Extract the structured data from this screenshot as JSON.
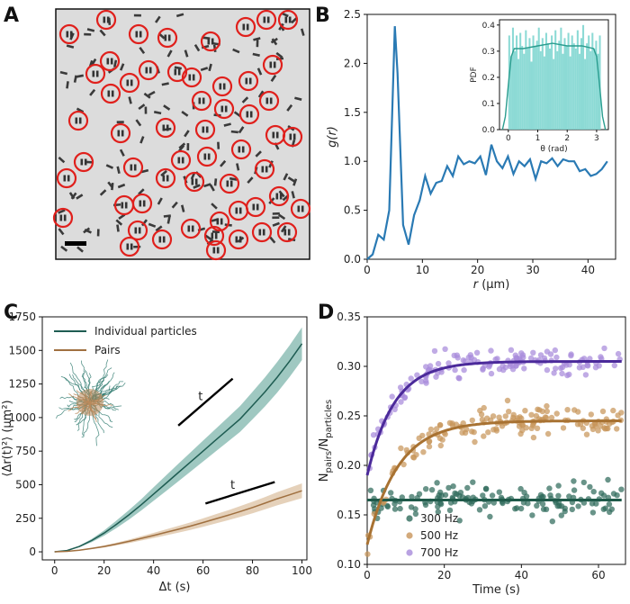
{
  "figure_labels": {
    "a": "A",
    "b": "B",
    "c": "C",
    "d": "D"
  },
  "panel_a": {
    "description_name": "micrograph-with-circled-pairs"
  },
  "chart_data": [
    {
      "panel": "B",
      "type": "line",
      "xlabel_var": "r",
      "xlabel_unit": "(µm)",
      "ylabel_var": "g(r)",
      "xlim": [
        0,
        45
      ],
      "ylim": [
        0,
        2.5
      ],
      "xticks": [
        "0",
        "10",
        "20",
        "30",
        "40"
      ],
      "yticks": [
        "0.0",
        "0.5",
        "1.0",
        "1.5",
        "2.0",
        "2.5"
      ],
      "color": "#2a7ab4",
      "x": [
        0,
        1,
        2,
        3,
        4,
        5,
        5.5,
        6.5,
        7.5,
        8.5,
        9.5,
        10.5,
        11.5,
        12.5,
        13.5,
        14.5,
        15.5,
        16.5,
        17.5,
        18.5,
        19.5,
        20.5,
        21.5,
        22.5,
        23.5,
        24.5,
        25.5,
        26.5,
        27.5,
        28.5,
        29.5,
        30.5,
        31.5,
        32.5,
        33.5,
        34.5,
        35.5,
        36.5,
        37.5,
        38.5,
        39.5,
        40.5,
        41.5,
        42.5,
        43.5
      ],
      "y": [
        0,
        0.05,
        0.25,
        0.2,
        0.5,
        2.38,
        1.9,
        0.35,
        0.15,
        0.45,
        0.6,
        0.85,
        0.67,
        0.78,
        0.8,
        0.95,
        0.85,
        1.05,
        0.97,
        1.0,
        0.98,
        1.05,
        0.86,
        1.17,
        1.0,
        0.93,
        1.05,
        0.87,
        1.0,
        0.95,
        1.02,
        0.82,
        1.0,
        0.98,
        1.03,
        0.95,
        1.02,
        1.0,
        1.0,
        0.9,
        0.92,
        0.85,
        0.87,
        0.92,
        1.0
      ],
      "inset": {
        "type": "histogram+line",
        "xlabel": "θ (rad)",
        "ylabel": "PDF",
        "xlim": [
          -0.3,
          3.4
        ],
        "ylim": [
          0,
          0.42
        ],
        "xticks": [
          "0",
          "1",
          "2",
          "3"
        ],
        "yticks": [
          "0.0",
          "0.1",
          "0.2",
          "0.3",
          "0.4"
        ],
        "bar_color": "#7fd6d0",
        "line_color": "#2a9d8f",
        "hist_values": [
          0.36,
          0.28,
          0.39,
          0.3,
          0.36,
          0.27,
          0.37,
          0.32,
          0.29,
          0.38,
          0.31,
          0.35,
          0.26,
          0.36,
          0.32,
          0.34,
          0.39,
          0.3,
          0.35,
          0.28,
          0.37,
          0.33,
          0.31,
          0.36,
          0.27,
          0.38,
          0.3,
          0.34,
          0.39,
          0.29,
          0.35,
          0.32,
          0.37,
          0.28,
          0.36,
          0.33,
          0.31,
          0.38,
          0.29,
          0.35,
          0.4,
          0.27,
          0.33,
          0.36,
          0.3,
          0.37,
          0.31,
          0.34,
          0.29,
          0.36
        ],
        "kde_x": [
          -0.2,
          -0.1,
          0.0,
          0.1,
          0.2,
          0.5,
          1.0,
          1.5,
          2.0,
          2.5,
          2.9,
          3.0,
          3.1,
          3.2,
          3.3
        ],
        "kde_y": [
          0.0,
          0.05,
          0.17,
          0.28,
          0.31,
          0.31,
          0.32,
          0.33,
          0.32,
          0.32,
          0.31,
          0.28,
          0.17,
          0.05,
          0.0
        ]
      }
    },
    {
      "panel": "C",
      "type": "line",
      "xlabel": "Δt (s)",
      "ylabel": "⟨Δr(t)²⟩ (µm²)",
      "xlim": [
        -5,
        102
      ],
      "ylim": [
        -60,
        1750
      ],
      "xticks": [
        "0",
        "20",
        "40",
        "60",
        "80",
        "100"
      ],
      "yticks": [
        "0",
        "250",
        "500",
        "750",
        "1000",
        "1250",
        "1500",
        "1750"
      ],
      "series": [
        {
          "name": "Individual particles",
          "color": "#1e5c52",
          "band_color": "#7fb5ac",
          "x": [
            0,
            5,
            10,
            15,
            20,
            25,
            30,
            35,
            40,
            45,
            50,
            55,
            60,
            65,
            70,
            75,
            80,
            85,
            90,
            95,
            100
          ],
          "y": [
            0,
            10,
            40,
            85,
            140,
            205,
            275,
            350,
            430,
            510,
            590,
            670,
            750,
            830,
            910,
            990,
            1090,
            1190,
            1300,
            1420,
            1550
          ],
          "band": [
            0,
            2,
            6,
            12,
            20,
            28,
            35,
            42,
            50,
            58,
            65,
            72,
            78,
            84,
            90,
            96,
            102,
            108,
            114,
            118,
            122
          ]
        },
        {
          "name": "Pairs",
          "color": "#a07040",
          "band_color": "#dcc1a3",
          "x": [
            0,
            5,
            10,
            15,
            20,
            25,
            30,
            35,
            40,
            45,
            50,
            55,
            60,
            65,
            70,
            75,
            80,
            85,
            90,
            95,
            100
          ],
          "y": [
            0,
            4,
            12,
            25,
            40,
            58,
            78,
            100,
            122,
            145,
            168,
            192,
            218,
            245,
            272,
            300,
            330,
            362,
            395,
            425,
            455
          ],
          "band": [
            0,
            1,
            3,
            5,
            8,
            10,
            13,
            16,
            19,
            22,
            25,
            28,
            31,
            34,
            37,
            40,
            43,
            46,
            49,
            52,
            55
          ]
        }
      ],
      "annotations": [
        {
          "text": "t",
          "slope_from": [
            50,
            940
          ],
          "slope_to": [
            72,
            1290
          ],
          "label_at": [
            59,
            1130
          ]
        },
        {
          "text": "t",
          "slope_from": [
            61,
            360
          ],
          "slope_to": [
            89,
            520
          ],
          "label_at": [
            72,
            470
          ]
        }
      ]
    },
    {
      "panel": "D",
      "type": "scatter",
      "xlabel": "Time (s)",
      "ylabel_main": "N",
      "ylabel_sub1": "pairs",
      "ylabel_mid": "/N",
      "ylabel_sub2": "particles",
      "xlim": [
        0,
        67
      ],
      "ylim": [
        0.1,
        0.35
      ],
      "xticks": [
        "0",
        "20",
        "40",
        "60"
      ],
      "yticks": [
        "0.10",
        "0.15",
        "0.20",
        "0.25",
        "0.30",
        "0.35"
      ],
      "series": [
        {
          "name": "300 Hz",
          "color": "#2f6b5b",
          "fit_color": "#1f5a4a",
          "fit": {
            "kind": "constant",
            "value": 0.165
          },
          "noise": 0.015
        },
        {
          "name": "500 Hz",
          "color": "#c8955a",
          "fit_color": "#a87232",
          "fit": {
            "kind": "exp",
            "y0": 0.12,
            "yinf": 0.245,
            "tau": 8
          },
          "noise": 0.015
        },
        {
          "name": "700 Hz",
          "color": "#a78bdb",
          "fit_color": "#4b2a9a",
          "fit": {
            "kind": "exp",
            "y0": 0.19,
            "yinf": 0.305,
            "tau": 7
          },
          "noise": 0.012
        }
      ]
    }
  ]
}
